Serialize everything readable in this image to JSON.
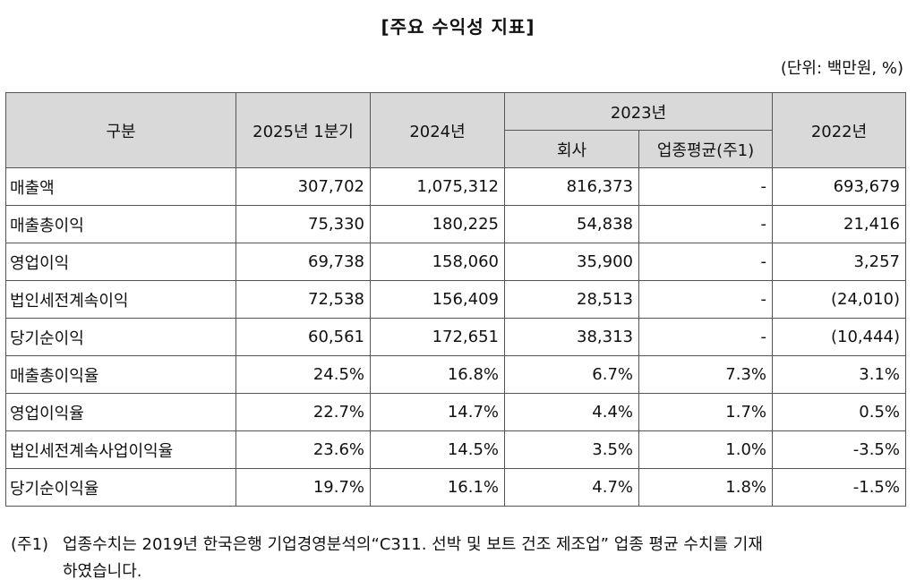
{
  "title": "[주요 수익성 지표]",
  "unit": "(단위: 백만원, %)",
  "table": {
    "headers": {
      "category": "구분",
      "q1_2025": "2025년 1분기",
      "y2024": "2024년",
      "y2023": "2023년",
      "y2023_company": "회사",
      "y2023_industry": "업종평균(주1)",
      "y2022": "2022년"
    },
    "rows": [
      {
        "label": "매출액",
        "q1_2025": "307,702",
        "y2024": "1,075,312",
        "y2023_company": "816,373",
        "y2023_industry": "-",
        "y2022": "693,679"
      },
      {
        "label": "매출총이익",
        "q1_2025": "75,330",
        "y2024": "180,225",
        "y2023_company": "54,838",
        "y2023_industry": "-",
        "y2022": "21,416"
      },
      {
        "label": "영업이익",
        "q1_2025": "69,738",
        "y2024": "158,060",
        "y2023_company": "35,900",
        "y2023_industry": "-",
        "y2022": "3,257"
      },
      {
        "label": "법인세전계속이익",
        "q1_2025": "72,538",
        "y2024": "156,409",
        "y2023_company": "28,513",
        "y2023_industry": "-",
        "y2022": "(24,010)"
      },
      {
        "label": "당기순이익",
        "q1_2025": "60,561",
        "y2024": "172,651",
        "y2023_company": "38,313",
        "y2023_industry": "-",
        "y2022": "(10,444)"
      },
      {
        "label": "매출총이익율",
        "q1_2025": "24.5%",
        "y2024": "16.8%",
        "y2023_company": "6.7%",
        "y2023_industry": "7.3%",
        "y2022": "3.1%"
      },
      {
        "label": "영업이익율",
        "q1_2025": "22.7%",
        "y2024": "14.7%",
        "y2023_company": "4.4%",
        "y2023_industry": "1.7%",
        "y2022": "0.5%"
      },
      {
        "label": "법인세전계속사업이익율",
        "q1_2025": "23.6%",
        "y2024": "14.5%",
        "y2023_company": "3.5%",
        "y2023_industry": "1.0%",
        "y2022": "-3.5%"
      },
      {
        "label": "당기순이익율",
        "q1_2025": "19.7%",
        "y2024": "16.1%",
        "y2023_company": "4.7%",
        "y2023_industry": "1.8%",
        "y2022": "-1.5%"
      }
    ]
  },
  "note": {
    "prefix": "(주1)",
    "line1": "업종수치는 2019년 한국은행 기업경영분석의“C311. 선박 및 보트 건조 제조업” 업종 평균 수치를 기재",
    "line2": "하였습니다."
  }
}
